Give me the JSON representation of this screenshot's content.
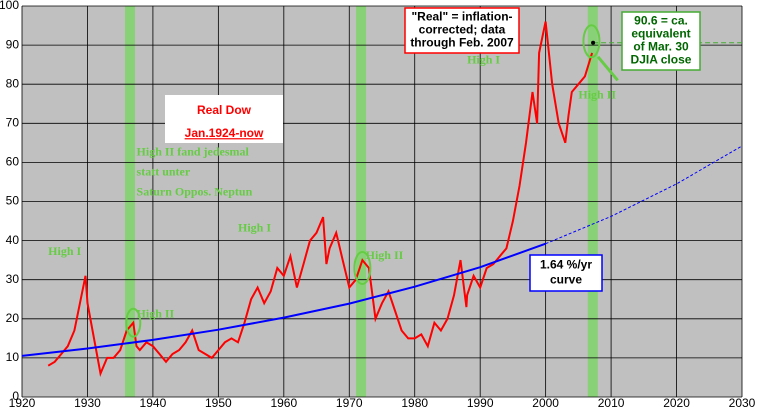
{
  "chart_data": {
    "type": "line",
    "title": "Real Dow",
    "subtitle": "Jan.1924-now",
    "xlim": [
      1920,
      2030
    ],
    "xticks": [
      1920,
      1930,
      1940,
      1950,
      1960,
      1970,
      1980,
      1990,
      2000,
      2010,
      2020,
      2030
    ],
    "ylim": [
      0,
      100
    ],
    "yticks": [
      0,
      10,
      20,
      30,
      40,
      50,
      60,
      70,
      80,
      90,
      100
    ],
    "grid": true,
    "bands": [
      1936.5,
      1971.8,
      2007.2
    ],
    "band_color": "#7fd46a",
    "series": [
      {
        "color": "#ff0000",
        "dashed": false,
        "x": [
          1924,
          1925,
          1926,
          1927,
          1928,
          1929.7,
          1930,
          1931,
          1932,
          1933,
          1934,
          1935,
          1936,
          1937,
          1937.5,
          1938,
          1939,
          1940,
          1941,
          1942,
          1943,
          1944,
          1945,
          1946,
          1947,
          1948,
          1949,
          1950,
          1951,
          1952,
          1953,
          1954,
          1955,
          1956,
          1957,
          1958,
          1959,
          1960,
          1961,
          1962,
          1963,
          1964,
          1965,
          1966,
          1966.5,
          1967,
          1968,
          1969,
          1970,
          1971,
          1972,
          1973,
          1974,
          1975,
          1976,
          1977,
          1978,
          1979,
          1980,
          1981,
          1982,
          1983,
          1984,
          1985,
          1986,
          1987,
          1987.9,
          1988,
          1989,
          1990,
          1991,
          1992,
          1993,
          1994,
          1995,
          1996,
          1997,
          1998,
          1998.7,
          1999,
          2000,
          2000.5,
          2001,
          2002,
          2003,
          2003.5,
          2004,
          2005,
          2006,
          2007.1
        ],
        "values": [
          8,
          9,
          11,
          13,
          17,
          31,
          24,
          15,
          6,
          10,
          10,
          12,
          17,
          19,
          13,
          12,
          14,
          13,
          11,
          9,
          11,
          12,
          14,
          17,
          12,
          11,
          10,
          12,
          14,
          15,
          14,
          19,
          25,
          28,
          24,
          27,
          33,
          31,
          36,
          28,
          34,
          40,
          42,
          46,
          34,
          38,
          42,
          35,
          28,
          30,
          35,
          33,
          20,
          24,
          27,
          22,
          17,
          15,
          15,
          16,
          13,
          19,
          17,
          20,
          26,
          35,
          23,
          26,
          31,
          28,
          33,
          34,
          36,
          38,
          45,
          54,
          65,
          78,
          70,
          88,
          96,
          88,
          80,
          70,
          65,
          72,
          78,
          80,
          82,
          88
        ]
      },
      {
        "color": "#0000ff",
        "dashed": false,
        "x": [
          1920,
          1930,
          1940,
          1950,
          1960,
          1970,
          1980,
          1990,
          2000
        ],
        "values": [
          10.5,
          12.4,
          14.6,
          17.2,
          20.3,
          23.9,
          28.2,
          33.2,
          39.2
        ]
      },
      {
        "color": "#0000ff",
        "dashed": true,
        "x": [
          2000,
          2010,
          2020,
          2030
        ],
        "values": [
          39.2,
          46.2,
          54.5,
          64.2
        ]
      }
    ],
    "marker": {
      "x": 2007.25,
      "y": 90.6,
      "color": "#000000"
    },
    "annotations": [
      {
        "text": "High I",
        "color": "#66cc44"
      },
      {
        "text": "High II",
        "color": "#66cc44"
      },
      {
        "text": "High I",
        "color": "#66cc44"
      },
      {
        "text": "High II",
        "color": "#66cc44"
      },
      {
        "text": "High I",
        "color": "#66cc44"
      },
      {
        "text": "High II",
        "color": "#66cc44"
      }
    ],
    "note_lines": [
      "High II fand jedesmal",
      "statt unter",
      "Saturn Oppos. Neptun"
    ],
    "real_box": [
      "\"Real\" = inflation-",
      "corrected; data",
      "through Feb. 2007"
    ],
    "close_box": [
      "90.6 = ca.",
      "equivalent",
      "of Mar. 30",
      "DJIA close"
    ],
    "curve_box": [
      "1.64 %/yr",
      "curve"
    ]
  }
}
